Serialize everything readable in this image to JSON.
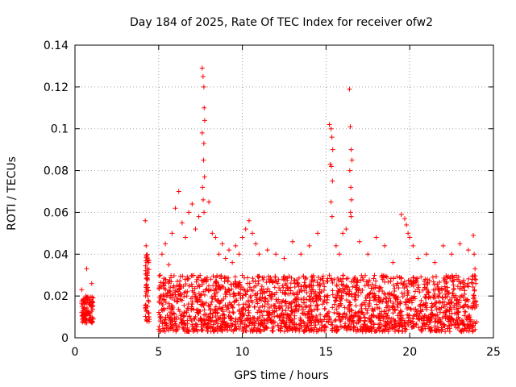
{
  "chart_data": {
    "type": "scatter",
    "title": "Day 184 of 2025, Rate Of TEC Index for receiver ofw2",
    "xlabel": "GPS time / hours",
    "ylabel": "ROTI / TECUs",
    "xlim": [
      0,
      25
    ],
    "ylim": [
      0,
      0.14
    ],
    "xticks": [
      "0",
      "5",
      "10",
      "15",
      "20",
      "25"
    ],
    "yticks": [
      "0",
      "0.02",
      "0.04",
      "0.06",
      "0.08",
      "0.1",
      "0.12",
      "0.14"
    ],
    "grid": true,
    "marker": "+",
    "color": "#ff0000",
    "series": [
      {
        "x": [
          0.4,
          0.5,
          0.55,
          0.6,
          0.65,
          0.7,
          0.75,
          0.8,
          1.0,
          1.05,
          1.1,
          4.2,
          4.25,
          4.3,
          4.35,
          4.4,
          4.3,
          4.35,
          4.25,
          4.3,
          5.1,
          5.2,
          5.3,
          5.4,
          5.5,
          5.6,
          5.8,
          6.0,
          6.2,
          6.4,
          6.6,
          6.8,
          7.0,
          7.2,
          7.4,
          7.6,
          7.65,
          7.7,
          7.72,
          7.75,
          7.6,
          7.7,
          7.68,
          7.74,
          7.62,
          7.66,
          7.71,
          8.0,
          8.2,
          8.4,
          8.6,
          8.8,
          9.0,
          9.2,
          9.4,
          9.6,
          9.8,
          10.0,
          10.2,
          10.4,
          10.6,
          10.8,
          11.0,
          11.5,
          12.0,
          12.5,
          13.0,
          13.5,
          14.0,
          14.5,
          15.2,
          15.3,
          15.35,
          15.4,
          15.25,
          15.32,
          15.38,
          15.3,
          15.36,
          15.6,
          15.8,
          16.0,
          16.2,
          16.4,
          16.45,
          16.5,
          16.55,
          16.42,
          16.48,
          16.52,
          16.46,
          16.5,
          17.0,
          17.5,
          18.0,
          18.5,
          19.0,
          19.5,
          19.7,
          19.8,
          19.9,
          20.0,
          20.2,
          20.5,
          21.0,
          21.5,
          22.0,
          22.5,
          23.0,
          23.5,
          23.8,
          23.85,
          23.9,
          23.95
        ],
        "y": [
          0.023,
          0.014,
          0.01,
          0.013,
          0.02,
          0.033,
          0.018,
          0.012,
          0.026,
          0.015,
          0.009,
          0.056,
          0.044,
          0.03,
          0.02,
          0.01,
          0.036,
          0.015,
          0.025,
          0.008,
          0.03,
          0.04,
          0.025,
          0.045,
          0.02,
          0.035,
          0.05,
          0.062,
          0.07,
          0.055,
          0.048,
          0.06,
          0.064,
          0.052,
          0.058,
          0.129,
          0.125,
          0.12,
          0.11,
          0.104,
          0.098,
          0.093,
          0.085,
          0.077,
          0.072,
          0.066,
          0.06,
          0.065,
          0.05,
          0.048,
          0.04,
          0.045,
          0.038,
          0.042,
          0.036,
          0.044,
          0.04,
          0.048,
          0.052,
          0.056,
          0.05,
          0.045,
          0.04,
          0.042,
          0.04,
          0.038,
          0.046,
          0.04,
          0.044,
          0.05,
          0.102,
          0.1,
          0.096,
          0.09,
          0.083,
          0.082,
          0.075,
          0.065,
          0.058,
          0.044,
          0.04,
          0.05,
          0.052,
          0.119,
          0.101,
          0.09,
          0.085,
          0.08,
          0.072,
          0.066,
          0.06,
          0.058,
          0.046,
          0.04,
          0.048,
          0.044,
          0.036,
          0.059,
          0.057,
          0.054,
          0.05,
          0.048,
          0.044,
          0.038,
          0.04,
          0.036,
          0.044,
          0.04,
          0.045,
          0.042,
          0.049,
          0.04,
          0.033,
          0.026
        ],
        "band": {
          "segments": [
            [
              0.4,
              1.1,
              0.007,
              0.02
            ],
            [
              4.2,
              4.45,
              0.007,
              0.04
            ],
            [
              5.0,
              24.0,
              0.003,
              0.03
            ]
          ]
        }
      }
    ]
  }
}
